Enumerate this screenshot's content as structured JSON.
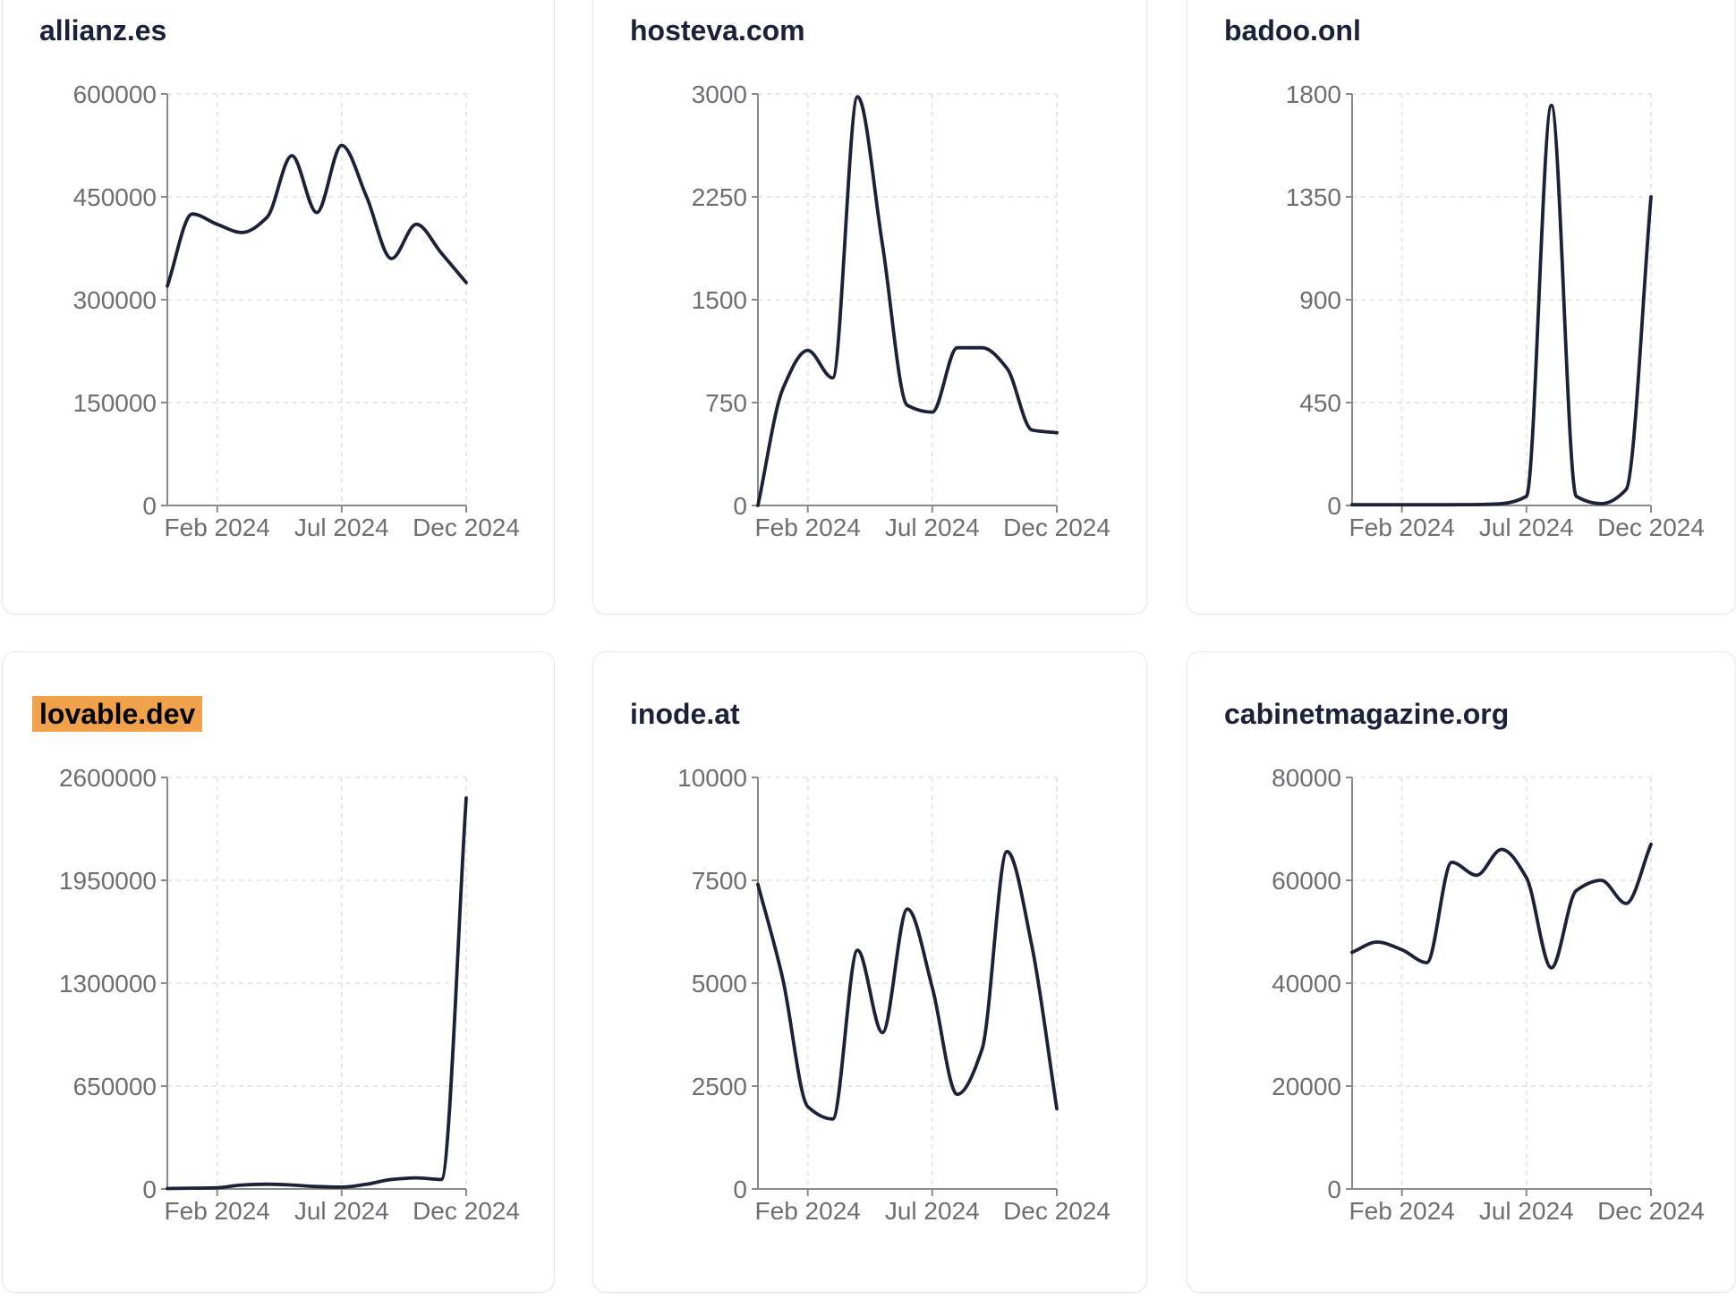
{
  "page": {
    "background": "#ffffff"
  },
  "palette": {
    "line": "#1b2137",
    "title_text": "#1a2138",
    "highlight_bg": "#f0a14c",
    "highlight_text": "#000000",
    "tick_label": "#6e6e72",
    "axis": "#8a8a8a",
    "grid": "#e8e8e8",
    "card_border": "#e4e7ef",
    "card_bg": "#ffffff"
  },
  "chart_data": [
    {
      "type": "line",
      "title": "allianz.es",
      "highlighted": false,
      "x": [
        "Dec 2023",
        "Jan 2024",
        "Feb 2024",
        "Mar 2024",
        "Apr 2024",
        "May 2024",
        "Jun 2024",
        "Jul 2024",
        "Aug 2024",
        "Sep 2024",
        "Oct 2024",
        "Nov 2024",
        "Dec 2024"
      ],
      "values": [
        320000,
        425000,
        410000,
        398000,
        420000,
        510000,
        427000,
        525000,
        450000,
        360000,
        410000,
        368000,
        325000
      ],
      "ylim": [
        0,
        600000
      ],
      "y_ticks": [
        0,
        150000,
        300000,
        450000,
        600000
      ],
      "x_tick_labels": [
        "Feb 2024",
        "Jul 2024",
        "Dec 2024"
      ],
      "xlabel": "",
      "ylabel": "",
      "grid": true,
      "legend": null
    },
    {
      "type": "line",
      "title": "hosteva.com",
      "highlighted": false,
      "x": [
        "Dec 2023",
        "Jan 2024",
        "Feb 2024",
        "Mar 2024",
        "Apr 2024",
        "May 2024",
        "Jun 2024",
        "Jul 2024",
        "Aug 2024",
        "Sep 2024",
        "Oct 2024",
        "Nov 2024",
        "Dec 2024"
      ],
      "values": [
        0,
        850,
        1130,
        930,
        2980,
        1900,
        730,
        680,
        1150,
        1150,
        1000,
        550,
        530
      ],
      "ylim": [
        0,
        3000
      ],
      "y_ticks": [
        0,
        750,
        1500,
        2250,
        3000
      ],
      "x_tick_labels": [
        "Feb 2024",
        "Jul 2024",
        "Dec 2024"
      ],
      "xlabel": "",
      "ylabel": "",
      "grid": true,
      "legend": null
    },
    {
      "type": "line",
      "title": "badoo.onl",
      "highlighted": false,
      "x": [
        "Dec 2023",
        "Jan 2024",
        "Feb 2024",
        "Mar 2024",
        "Apr 2024",
        "May 2024",
        "Jun 2024",
        "Jul 2024",
        "Aug 2024",
        "Sep 2024",
        "Oct 2024",
        "Nov 2024",
        "Dec 2024"
      ],
      "values": [
        3,
        3,
        3,
        3,
        3,
        4,
        8,
        40,
        1750,
        40,
        8,
        70,
        1350
      ],
      "ylim": [
        0,
        1800
      ],
      "y_ticks": [
        0,
        450,
        900,
        1350,
        1800
      ],
      "x_tick_labels": [
        "Feb 2024",
        "Jul 2024",
        "Dec 2024"
      ],
      "xlabel": "",
      "ylabel": "",
      "grid": true,
      "legend": null
    },
    {
      "type": "line",
      "title": "lovable.dev",
      "highlighted": true,
      "x": [
        "Dec 2023",
        "Jan 2024",
        "Feb 2024",
        "Mar 2024",
        "Apr 2024",
        "May 2024",
        "Jun 2024",
        "Jul 2024",
        "Aug 2024",
        "Sep 2024",
        "Oct 2024",
        "Nov 2024",
        "Dec 2024"
      ],
      "values": [
        3000,
        5000,
        8000,
        25000,
        30000,
        25000,
        15000,
        12000,
        30000,
        60000,
        70000,
        60000,
        2470000
      ],
      "ylim": [
        0,
        2600000
      ],
      "y_ticks": [
        0,
        650000,
        1300000,
        1950000,
        2600000
      ],
      "x_tick_labels": [
        "Feb 2024",
        "Jul 2024",
        "Dec 2024"
      ],
      "xlabel": "",
      "ylabel": "",
      "grid": true,
      "legend": null
    },
    {
      "type": "line",
      "title": "inode.at",
      "highlighted": false,
      "x": [
        "Dec 2023",
        "Jan 2024",
        "Feb 2024",
        "Mar 2024",
        "Apr 2024",
        "May 2024",
        "Jun 2024",
        "Jul 2024",
        "Aug 2024",
        "Sep 2024",
        "Oct 2024",
        "Nov 2024",
        "Dec 2024"
      ],
      "values": [
        7400,
        5100,
        2000,
        1700,
        5800,
        3800,
        6800,
        4900,
        2300,
        3400,
        8200,
        5900,
        1950
      ],
      "ylim": [
        0,
        10000
      ],
      "y_ticks": [
        0,
        2500,
        5000,
        7500,
        10000
      ],
      "x_tick_labels": [
        "Feb 2024",
        "Jul 2024",
        "Dec 2024"
      ],
      "xlabel": "",
      "ylabel": "",
      "grid": true,
      "legend": null
    },
    {
      "type": "line",
      "title": "cabinetmagazine.org",
      "highlighted": false,
      "x": [
        "Dec 2023",
        "Jan 2024",
        "Feb 2024",
        "Mar 2024",
        "Apr 2024",
        "May 2024",
        "Jun 2024",
        "Jul 2024",
        "Aug 2024",
        "Sep 2024",
        "Oct 2024",
        "Nov 2024",
        "Dec 2024"
      ],
      "values": [
        46000,
        48000,
        46500,
        44000,
        63500,
        61000,
        66000,
        60500,
        43000,
        58000,
        60000,
        55500,
        67000
      ],
      "ylim": [
        0,
        80000
      ],
      "y_ticks": [
        0,
        20000,
        40000,
        60000,
        80000
      ],
      "x_tick_labels": [
        "Feb 2024",
        "Jul 2024",
        "Dec 2024"
      ],
      "xlabel": "",
      "ylabel": "",
      "grid": true,
      "legend": null
    }
  ]
}
